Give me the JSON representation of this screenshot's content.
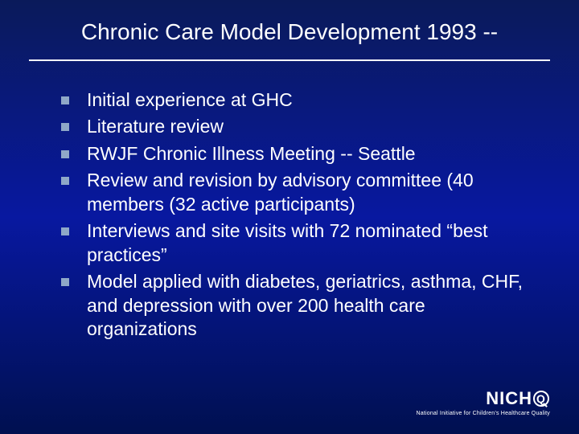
{
  "title": "Chronic Care Model Development 1993 --",
  "bullets": [
    "Initial experience at GHC",
    "Literature review",
    "RWJF Chronic Illness Meeting -- Seattle",
    "Review and revision by advisory committee (40 members (32 active participants)",
    "Interviews and site visits with 72 nominated “best practices”",
    "Model applied with diabetes, geriatrics, asthma, CHF, and depression with over 200 health care organizations"
  ],
  "logo": {
    "prefix": "NICH",
    "suffix": "",
    "tagline": "National Initiative for Children’s Healthcare Quality"
  },
  "style": {
    "background_gradient": [
      "#0a1a5a",
      "#0818a0",
      "#001050"
    ],
    "title_fontsize": 28,
    "title_color": "#ffffff",
    "divider_color": "#ffffff",
    "bullet_marker_color": "#8fa8c8",
    "bullet_marker_size": 10,
    "body_fontsize": 23,
    "body_color": "#ffffff",
    "font_family": "Arial",
    "logo_color": "#ffffff",
    "logo_fontsize": 22,
    "tagline_fontsize": 7
  }
}
